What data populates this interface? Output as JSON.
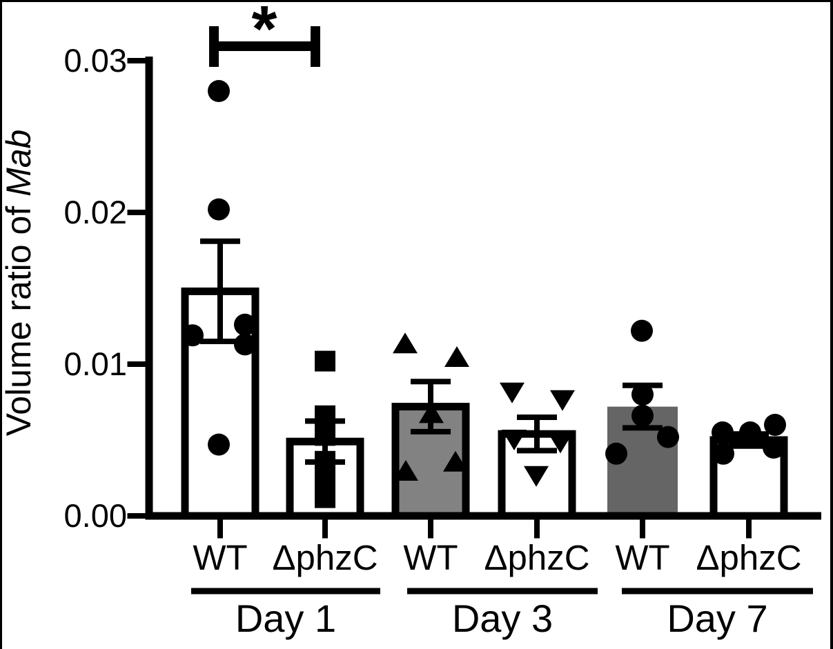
{
  "figure": {
    "background": "#ffffff",
    "frame_color": "#000000"
  },
  "colors": {
    "black": "#000000",
    "white_bar": "#ffffff",
    "gray_bar_day3": "#828282",
    "gray_bar_day7": "#656565"
  },
  "chart_data": {
    "type": "bar",
    "title": "",
    "ylabel": "Volume ratio of Mab",
    "ylabel_plain": "Volume ratio of ",
    "ylabel_italic": "Mab",
    "xlabel": "",
    "ylim": [
      0,
      0.03
    ],
    "ytick_values": [
      0,
      0.01,
      0.02,
      0.03
    ],
    "ytick_labels": [
      "0.00",
      "0.01",
      "0.02",
      "0.03"
    ],
    "grid": false,
    "legend": "none",
    "error_bar_type": "SEM, symmetric caps",
    "day_groups": [
      {
        "label": "Day 1"
      },
      {
        "label": "Day 3"
      },
      {
        "label": "Day 7"
      }
    ],
    "bars": [
      {
        "day": "Day 1",
        "label": "WT",
        "mean": 0.0148,
        "sem": 0.0033,
        "fill": "#ffffff",
        "outlined": true,
        "marker": "circle",
        "points": [
          {
            "dx": -2,
            "v": 0.028
          },
          {
            "dx": -2,
            "v": 0.0202
          },
          {
            "dx": 36,
            "v": 0.0126
          },
          {
            "dx": -40,
            "v": 0.0119
          },
          {
            "dx": 36,
            "v": 0.0113
          },
          {
            "dx": -2,
            "v": 0.0047
          }
        ]
      },
      {
        "day": "Day 1",
        "label": "ΔphzC",
        "mean": 0.0049,
        "sem": 0.00135,
        "fill": "#ffffff",
        "outlined": true,
        "marker": "square",
        "points": [
          {
            "dx": 0,
            "v": 0.0102
          },
          {
            "dx": 0,
            "v": 0.0066
          },
          {
            "dx": 0,
            "v": 0.0053
          },
          {
            "dx": 0,
            "v": 0.0036
          },
          {
            "dx": 0,
            "v": 0.0025
          },
          {
            "dx": 0,
            "v": 0.0012
          }
        ]
      },
      {
        "day": "Day 3",
        "label": "WT",
        "mean": 0.0072,
        "sem": 0.00165,
        "fill": "#828282",
        "outlined": true,
        "marker": "triangle-up",
        "points": [
          {
            "dx": -37,
            "v": 0.0114
          },
          {
            "dx": 38,
            "v": 0.0105
          },
          {
            "dx": 1,
            "v": 0.0068
          },
          {
            "dx": 36,
            "v": 0.0036
          },
          {
            "dx": -36,
            "v": 0.003
          }
        ]
      },
      {
        "day": "Day 3",
        "label": "ΔphzC",
        "mean": 0.0054,
        "sem": 0.0011,
        "fill": "#ffffff",
        "outlined": true,
        "marker": "triangle-down",
        "points": [
          {
            "dx": -36,
            "v": 0.0081
          },
          {
            "dx": 37,
            "v": 0.0076
          },
          {
            "dx": -33,
            "v": 0.005
          },
          {
            "dx": 34,
            "v": 0.0048
          },
          {
            "dx": -1,
            "v": 0.0026
          }
        ]
      },
      {
        "day": "Day 7",
        "label": "WT",
        "mean": 0.0072,
        "sem": 0.0014,
        "fill": "#656565",
        "outlined": false,
        "marker": "circle",
        "points": [
          {
            "dx": -1,
            "v": 0.0122
          },
          {
            "dx": 0,
            "v": 0.008
          },
          {
            "dx": 0,
            "v": 0.0066
          },
          {
            "dx": 37,
            "v": 0.0052
          },
          {
            "dx": -38,
            "v": 0.0041
          }
        ]
      },
      {
        "day": "Day 7",
        "label": "ΔphzC",
        "mean": 0.005,
        "sem": 0.0004,
        "fill": "#ffffff",
        "outlined": true,
        "marker": "circle",
        "points": [
          {
            "dx": 38,
            "v": 0.006
          },
          {
            "dx": -38,
            "v": 0.0055
          },
          {
            "dx": 2,
            "v": 0.0055
          },
          {
            "dx": 36,
            "v": 0.0045
          },
          {
            "dx": -37,
            "v": 0.0041
          }
        ]
      }
    ],
    "significance": {
      "symbol": "*",
      "between": [
        "Day 1 WT",
        "Day 1 ΔphzC"
      ]
    }
  }
}
